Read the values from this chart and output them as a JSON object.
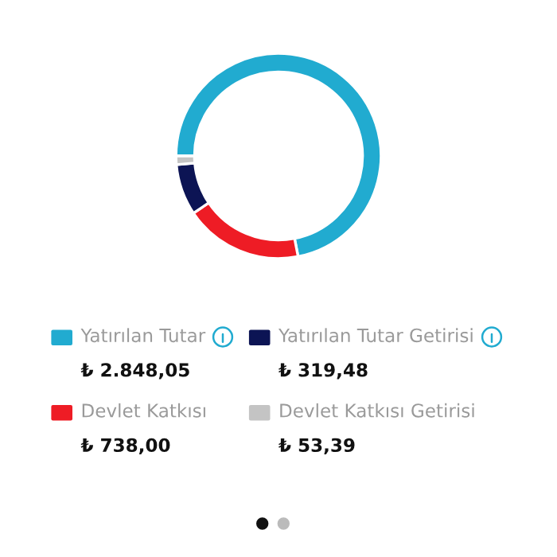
{
  "chart_data": {
    "type": "donut",
    "categories": [
      "Yatırılan Tutar",
      "Devlet Katkısı",
      "Yatırılan Tutar Getirisi",
      "Devlet Katkısı Getirisi"
    ],
    "values": [
      2848.05,
      738.0,
      319.48,
      53.39
    ],
    "colors": [
      "#21abd0",
      "#ee1c25",
      "#0c1454",
      "#c4c4c4"
    ],
    "value_labels": [
      "₺ 2.848,05",
      "₺ 738,00",
      "₺ 319,48",
      "₺ 53,39"
    ],
    "legend": "bottom"
  }
}
